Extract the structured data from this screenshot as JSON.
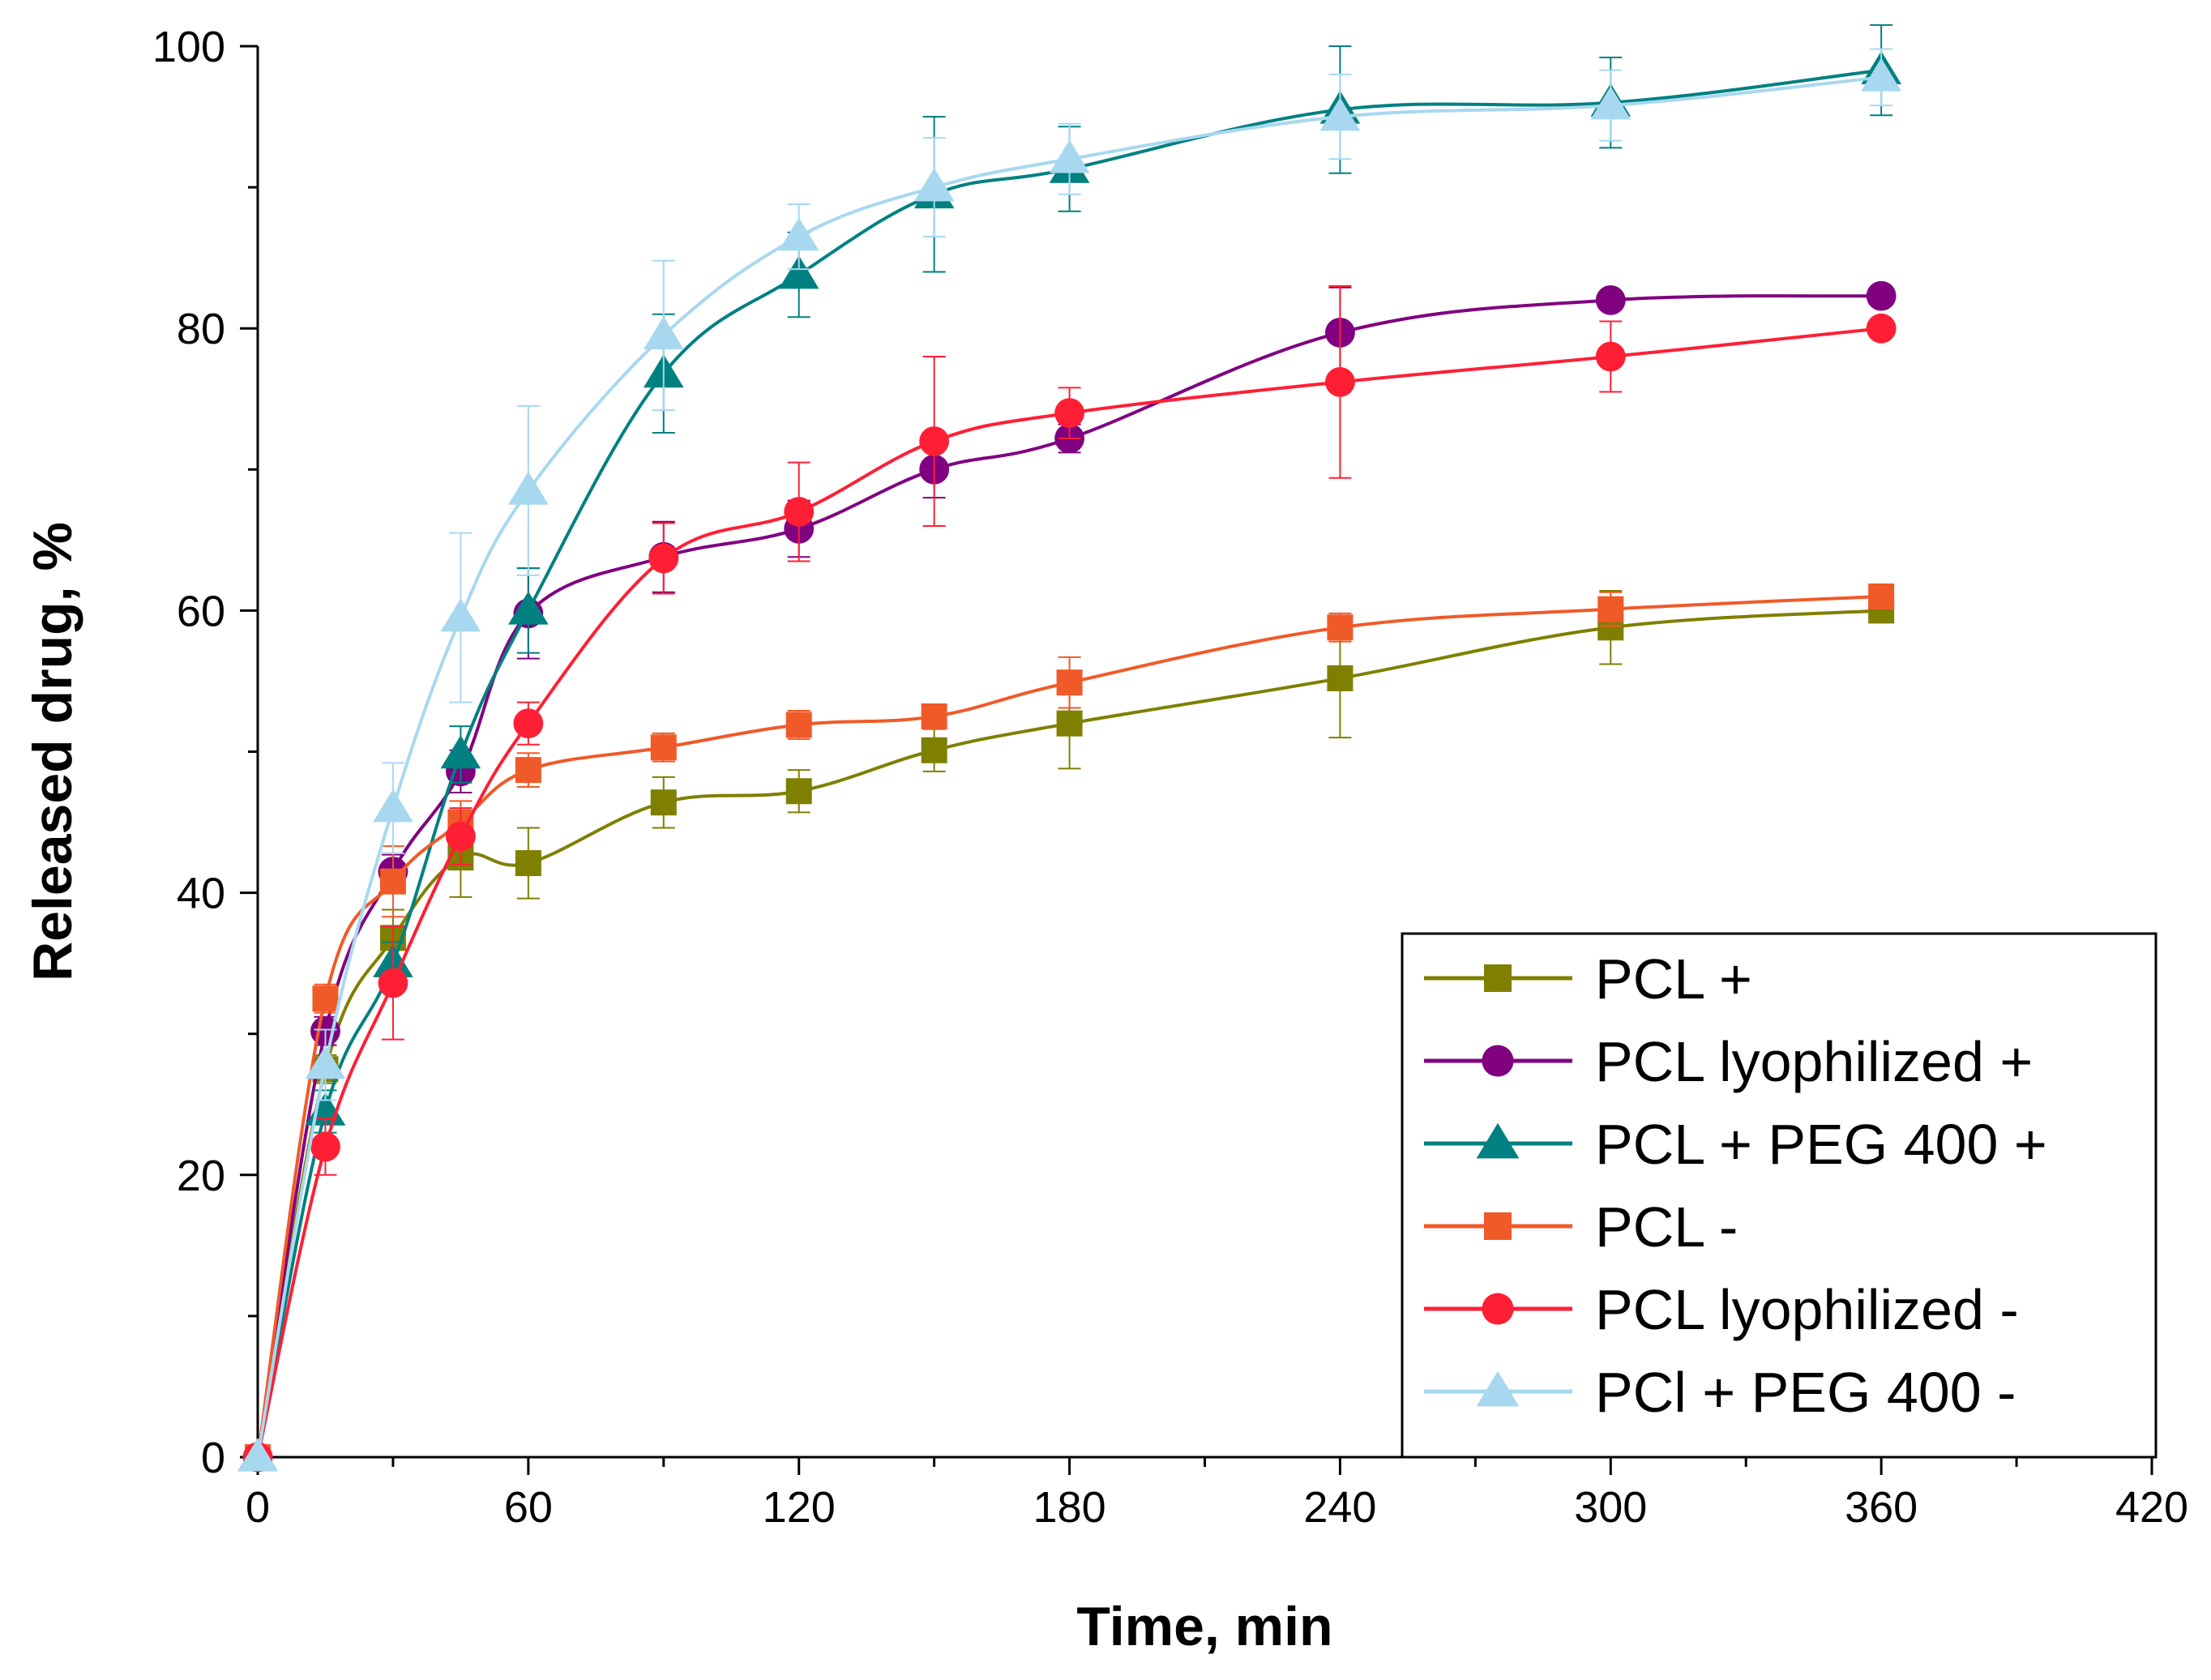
{
  "chart_data": {
    "type": "line",
    "title": "",
    "xlabel": "Time, min",
    "ylabel": "Released drug, %",
    "xlim": [
      0,
      420
    ],
    "ylim": [
      0,
      100
    ],
    "xticks": [
      0,
      60,
      120,
      180,
      240,
      300,
      360,
      420
    ],
    "yticks": [
      0,
      20,
      40,
      60,
      80,
      100
    ],
    "x_minor_step": 30,
    "y_minor_step": 10,
    "legend_position": "bottom-right",
    "x": [
      0,
      15,
      30,
      45,
      60,
      90,
      120,
      150,
      180,
      240,
      300,
      360
    ],
    "series": [
      {
        "name": "PCL +",
        "color": "#7F7F00",
        "marker": "square",
        "values": [
          0,
          27.5,
          36.8,
          42.5,
          42.1,
          46.4,
          47.2,
          50.1,
          52.0,
          55.2,
          58.8,
          60.0
        ],
        "errors": [
          0,
          1.0,
          2.0,
          2.8,
          2.5,
          1.8,
          1.5,
          1.5,
          3.2,
          4.2,
          2.6,
          0.5
        ]
      },
      {
        "name": "PCL lyophilized +",
        "color": "#800080",
        "marker": "circle",
        "values": [
          0,
          30.2,
          41.5,
          48.6,
          59.8,
          63.8,
          65.8,
          70.0,
          72.2,
          79.7,
          82.0,
          82.3
        ],
        "errors": [
          0,
          1.0,
          1.2,
          1.5,
          3.2,
          2.5,
          2.0,
          2.0,
          1.0,
          3.2,
          0.5,
          0.5
        ]
      },
      {
        "name": "PCL + PEG 400 +",
        "color": "#008080",
        "marker": "triangle",
        "values": [
          0,
          24.5,
          35.0,
          49.8,
          60.0,
          76.8,
          83.8,
          89.5,
          91.3,
          95.5,
          96.0,
          98.3
        ],
        "errors": [
          0,
          1.5,
          1.5,
          2.0,
          3.0,
          4.2,
          3.0,
          5.5,
          3.0,
          4.5,
          3.2,
          3.2
        ]
      },
      {
        "name": "PCL -",
        "color": "#F05A28",
        "marker": "square",
        "values": [
          0,
          32.5,
          40.8,
          45.0,
          48.7,
          50.3,
          51.9,
          52.5,
          54.9,
          58.8,
          60.1,
          61.0
        ],
        "errors": [
          0,
          1.0,
          2.5,
          1.5,
          1.2,
          1.0,
          1.0,
          0.8,
          1.8,
          1.0,
          1.2,
          0.5
        ]
      },
      {
        "name": "PCL lyophilized -",
        "color": "#FF1F35",
        "marker": "circle",
        "values": [
          0,
          22.0,
          33.6,
          44.0,
          52.0,
          63.7,
          67.0,
          72.0,
          74.0,
          76.2,
          78.0,
          80.0
        ],
        "errors": [
          0,
          2.0,
          4.0,
          2.0,
          1.5,
          2.5,
          3.5,
          6.0,
          1.8,
          6.8,
          2.5,
          0.5
        ]
      },
      {
        "name": "PCl + PEG 400 -",
        "color": "#A8D8F0",
        "marker": "triangle",
        "values": [
          0,
          27.8,
          46.0,
          59.5,
          68.5,
          79.5,
          86.5,
          90.0,
          92.0,
          95.0,
          95.8,
          97.8
        ],
        "errors": [
          0,
          2.5,
          3.2,
          6.0,
          6.0,
          5.3,
          2.3,
          3.5,
          2.5,
          3.0,
          2.5,
          2.0
        ]
      }
    ]
  }
}
